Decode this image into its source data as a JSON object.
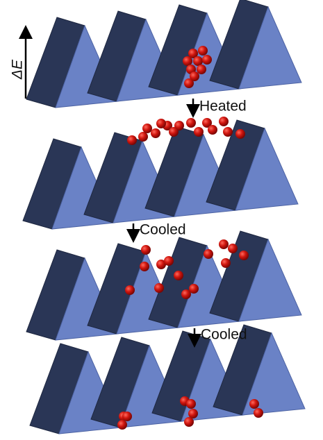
{
  "labels": {
    "energy_axis": "ΔE",
    "steps": [
      "Heated",
      "Cooled",
      "Cooled"
    ]
  }
}
